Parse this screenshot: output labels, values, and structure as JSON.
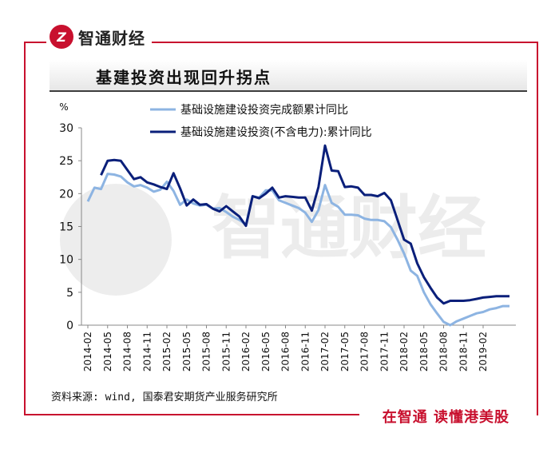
{
  "brand": {
    "logo_text": "Z",
    "name": "智通财经",
    "slogan": "在智通 读懂港美股"
  },
  "colors": {
    "frame": "#c8102e",
    "series_light": "#8db4e2",
    "series_dark": "#0a1f7a"
  },
  "watermark": {
    "text": "智通财经"
  },
  "chart_data": {
    "type": "line",
    "title": "基建投资出现回升拐点",
    "ylabel": "%",
    "ylim": [
      0,
      30
    ],
    "yticks": [
      0,
      5,
      10,
      15,
      20,
      25,
      30
    ],
    "xticks": [
      "2014-02",
      "2014-05",
      "2014-08",
      "2014-11",
      "2015-02",
      "2015-05",
      "2015-08",
      "2015-11",
      "2016-02",
      "2016-05",
      "2016-08",
      "2016-11",
      "2017-02",
      "2017-05",
      "2017-08",
      "2017-11",
      "2018-02",
      "2018-05",
      "2018-08",
      "2018-11",
      "2019-02"
    ],
    "x": [
      "2014-02",
      "2014-03",
      "2014-04",
      "2014-05",
      "2014-06",
      "2014-07",
      "2014-08",
      "2014-09",
      "2014-10",
      "2014-11",
      "2014-12",
      "2015-01",
      "2015-02",
      "2015-03",
      "2015-04",
      "2015-05",
      "2015-06",
      "2015-07",
      "2015-08",
      "2015-09",
      "2015-10",
      "2015-11",
      "2015-12",
      "2016-01",
      "2016-02",
      "2016-03",
      "2016-04",
      "2016-05",
      "2016-06",
      "2016-07",
      "2016-08",
      "2016-09",
      "2016-10",
      "2016-11",
      "2016-12",
      "2017-01",
      "2017-02",
      "2017-03",
      "2017-04",
      "2017-05",
      "2017-06",
      "2017-07",
      "2017-08",
      "2017-09",
      "2017-10",
      "2017-11",
      "2017-12",
      "2018-01",
      "2018-02",
      "2018-03",
      "2018-04",
      "2018-05",
      "2018-06",
      "2018-07",
      "2018-08",
      "2018-09",
      "2018-10",
      "2018-11",
      "2018-12",
      "2019-01",
      "2019-02",
      "2019-03",
      "2019-04",
      "2019-05",
      "2019-06"
    ],
    "series": [
      {
        "name": "基础设施建设投资完成额累计同比",
        "color": "#8db4e2",
        "values": [
          18.8,
          20.9,
          20.7,
          23.0,
          22.9,
          22.6,
          21.7,
          21.1,
          21.3,
          20.9,
          20.3,
          20.6,
          21.8,
          20.4,
          18.3,
          19.1,
          18.5,
          18.2,
          18.3,
          17.7,
          17.8,
          17.2,
          16.5,
          16.0,
          15.3,
          19.6,
          19.4,
          20.5,
          20.5,
          19.0,
          18.6,
          18.2,
          17.8,
          17.1,
          15.7,
          17.5,
          21.3,
          18.6,
          18.0,
          16.8,
          16.8,
          16.7,
          16.2,
          16.0,
          16.0,
          15.8,
          14.9,
          13.0,
          10.9,
          8.3,
          7.5,
          5.0,
          3.2,
          1.8,
          0.5,
          0.0,
          0.6,
          1.0,
          1.4,
          1.8,
          2.0,
          2.4,
          2.6,
          2.9,
          2.9
        ]
      },
      {
        "name": "基础设施建设投资(不含电力):累计同比",
        "color": "#0a1f7a",
        "values": [
          null,
          null,
          22.8,
          25.0,
          25.1,
          25.0,
          23.6,
          22.2,
          22.5,
          21.7,
          21.4,
          21.0,
          20.7,
          23.1,
          20.8,
          18.2,
          19.1,
          18.3,
          18.4,
          17.7,
          17.3,
          18.1,
          17.3,
          16.5,
          15.1,
          19.6,
          19.3,
          20.0,
          20.9,
          19.4,
          19.6,
          19.5,
          19.4,
          19.4,
          17.4,
          21.0,
          27.3,
          23.5,
          23.4,
          21.0,
          21.1,
          20.9,
          19.8,
          19.8,
          19.6,
          20.1,
          19.0,
          16.0,
          13.0,
          12.4,
          9.4,
          7.3,
          5.7,
          4.2,
          3.3,
          3.7,
          3.7,
          3.7,
          3.8,
          4.0,
          4.2,
          4.3,
          4.4,
          4.4,
          4.4
        ]
      }
    ],
    "legend_position": "top",
    "grid": false,
    "source_note": "资料来源: wind, 国泰君安期货产业服务研究所"
  }
}
